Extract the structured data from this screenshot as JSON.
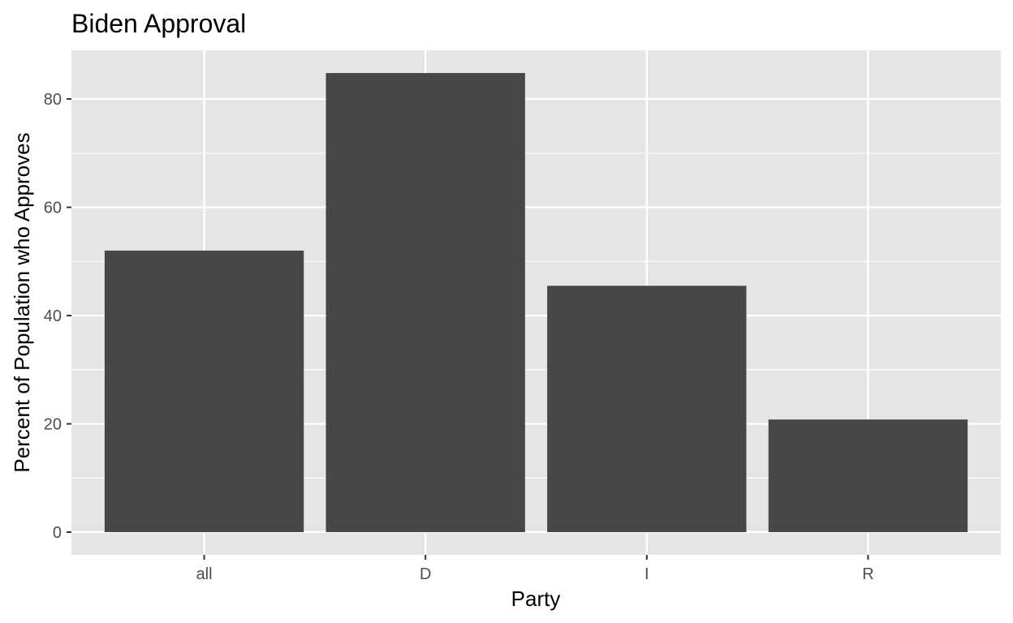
{
  "chart_data": {
    "type": "bar",
    "title": "Biden Approval",
    "xlabel": "Party",
    "ylabel": "Percent of Population who Approves",
    "categories": [
      "all",
      "D",
      "I",
      "R"
    ],
    "values": [
      52,
      84.8,
      45.5,
      20.8
    ],
    "ylim": [
      -4.2,
      89
    ],
    "yticks": [
      0,
      20,
      40,
      60,
      80
    ],
    "grid": true,
    "legend": "none",
    "colors": {
      "panel_background": "#e5e5e5",
      "grid_line": "#ffffff",
      "bar_fill": "#474747",
      "tick_label": "#4d4d4d",
      "tick_mark": "#333333"
    }
  }
}
